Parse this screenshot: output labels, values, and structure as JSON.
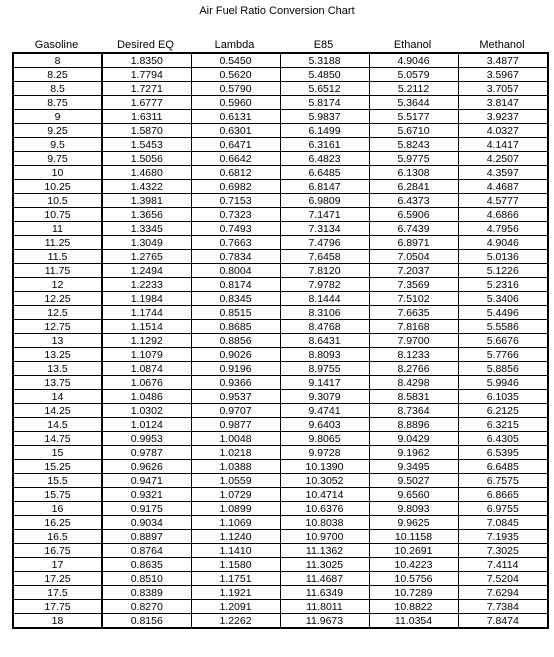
{
  "title": "Air Fuel Ratio Conversion Chart",
  "columns": [
    "Gasoline",
    "Desired EQ",
    "Lambda",
    "E85",
    "Ethanol",
    "Methanol"
  ],
  "rows": [
    [
      "8",
      "1.8350",
      "0.5450",
      "5.3188",
      "4.9046",
      "3.4877"
    ],
    [
      "8.25",
      "1.7794",
      "0.5620",
      "5.4850",
      "5.0579",
      "3.5967"
    ],
    [
      "8.5",
      "1.7271",
      "0.5790",
      "5.6512",
      "5.2112",
      "3.7057"
    ],
    [
      "8.75",
      "1.6777",
      "0.5960",
      "5.8174",
      "5.3644",
      "3.8147"
    ],
    [
      "9",
      "1.6311",
      "0.6131",
      "5.9837",
      "5.5177",
      "3.9237"
    ],
    [
      "9.25",
      "1.5870",
      "0.6301",
      "6.1499",
      "5.6710",
      "4.0327"
    ],
    [
      "9.5",
      "1.5453",
      "0.6471",
      "6.3161",
      "5.8243",
      "4.1417"
    ],
    [
      "9.75",
      "1.5056",
      "0.6642",
      "6.4823",
      "5.9775",
      "4.2507"
    ],
    [
      "10",
      "1.4680",
      "0.6812",
      "6.6485",
      "6.1308",
      "4.3597"
    ],
    [
      "10.25",
      "1.4322",
      "0.6982",
      "6.8147",
      "6.2841",
      "4.4687"
    ],
    [
      "10.5",
      "1.3981",
      "0.7153",
      "6.9809",
      "6.4373",
      "4.5777"
    ],
    [
      "10.75",
      "1.3656",
      "0.7323",
      "7.1471",
      "6.5906",
      "4.6866"
    ],
    [
      "11",
      "1.3345",
      "0.7493",
      "7.3134",
      "6.7439",
      "4.7956"
    ],
    [
      "11.25",
      "1.3049",
      "0.7663",
      "7.4796",
      "6.8971",
      "4.9046"
    ],
    [
      "11.5",
      "1.2765",
      "0.7834",
      "7.6458",
      "7.0504",
      "5.0136"
    ],
    [
      "11.75",
      "1.2494",
      "0.8004",
      "7.8120",
      "7.2037",
      "5.1226"
    ],
    [
      "12",
      "1.2233",
      "0.8174",
      "7.9782",
      "7.3569",
      "5.2316"
    ],
    [
      "12.25",
      "1.1984",
      "0.8345",
      "8.1444",
      "7.5102",
      "5.3406"
    ],
    [
      "12.5",
      "1.1744",
      "0.8515",
      "8.3106",
      "7.6635",
      "5.4496"
    ],
    [
      "12.75",
      "1.1514",
      "0.8685",
      "8.4768",
      "7.8168",
      "5.5586"
    ],
    [
      "13",
      "1.1292",
      "0.8856",
      "8.6431",
      "7.9700",
      "5.6676"
    ],
    [
      "13.25",
      "1.1079",
      "0.9026",
      "8.8093",
      "8.1233",
      "5.7766"
    ],
    [
      "13.5",
      "1.0874",
      "0.9196",
      "8.9755",
      "8.2766",
      "5.8856"
    ],
    [
      "13.75",
      "1.0676",
      "0.9366",
      "9.1417",
      "8.4298",
      "5.9946"
    ],
    [
      "14",
      "1.0486",
      "0.9537",
      "9.3079",
      "8.5831",
      "6.1035"
    ],
    [
      "14.25",
      "1.0302",
      "0.9707",
      "9.4741",
      "8.7364",
      "6.2125"
    ],
    [
      "14.5",
      "1.0124",
      "0.9877",
      "9.6403",
      "8.8896",
      "6.3215"
    ],
    [
      "14.75",
      "0.9953",
      "1.0048",
      "9.8065",
      "9.0429",
      "6.4305"
    ],
    [
      "15",
      "0.9787",
      "1.0218",
      "9.9728",
      "9.1962",
      "6.5395"
    ],
    [
      "15.25",
      "0.9626",
      "1.0388",
      "10.1390",
      "9.3495",
      "6.6485"
    ],
    [
      "15.5",
      "0.9471",
      "1.0559",
      "10.3052",
      "9.5027",
      "6.7575"
    ],
    [
      "15.75",
      "0.9321",
      "1.0729",
      "10.4714",
      "9.6560",
      "6.8665"
    ],
    [
      "16",
      "0.9175",
      "1.0899",
      "10.6376",
      "9.8093",
      "6.9755"
    ],
    [
      "16.25",
      "0.9034",
      "1.1069",
      "10.8038",
      "9.9625",
      "7.0845"
    ],
    [
      "16.5",
      "0.8897",
      "1.1240",
      "10.9700",
      "10.1158",
      "7.1935"
    ],
    [
      "16.75",
      "0.8764",
      "1.1410",
      "11.1362",
      "10.2691",
      "7.3025"
    ],
    [
      "17",
      "0.8635",
      "1.1580",
      "11.3025",
      "10.4223",
      "7.4114"
    ],
    [
      "17.25",
      "0.8510",
      "1.1751",
      "11.4687",
      "10.5756",
      "7.5204"
    ],
    [
      "17.5",
      "0.8389",
      "1.1921",
      "11.6349",
      "10.7289",
      "7.6294"
    ],
    [
      "17.75",
      "0.8270",
      "1.2091",
      "11.8011",
      "10.8822",
      "7.7384"
    ],
    [
      "18",
      "0.8156",
      "1.2262",
      "11.9673",
      "11.0354",
      "7.8474"
    ]
  ]
}
